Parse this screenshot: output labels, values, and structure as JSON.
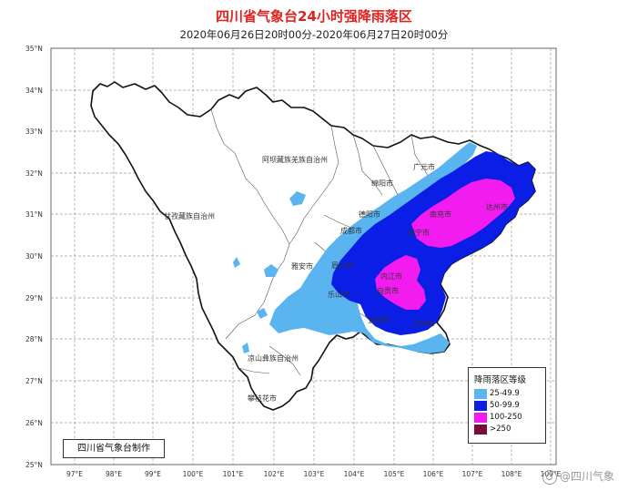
{
  "title": "四川省气象台24小时强降雨落区",
  "subtitle": "2020年06月26日20时00分-2020年06月27日20时00分",
  "lat_labels": [
    "35°N",
    "34°N",
    "33°N",
    "32°N",
    "31°N",
    "30°N",
    "29°N",
    "28°N",
    "27°N",
    "26°N",
    "25°N"
  ],
  "lon_labels": [
    "97°E",
    "98°E",
    "99°E",
    "100°E",
    "101°E",
    "102°E",
    "103°E",
    "104°E",
    "105°E",
    "106°E",
    "107°E",
    "108°E",
    "109°E"
  ],
  "regions": {
    "aba": "阿坝藏族羌族自治州",
    "ganzi": "甘孜藏族自治州",
    "liangshan": "凉山彝族自治州"
  },
  "cities": {
    "guangyuan": "广元市",
    "mianyang": "绵阳市",
    "deyang": "德阳市",
    "chengdu": "成都市",
    "nanchong": "南充市",
    "dazhou": "达州市",
    "suining": "遂宁市",
    "yaan": "雅安市",
    "meishan": "眉山市",
    "leshan": "乐山市",
    "neijiang": "内江市",
    "zigong": "自贡市",
    "yibin": "宜宾市",
    "luzhou": "泸州市",
    "panzhihua": "攀枝花市"
  },
  "legend": {
    "title": "降雨落区等级",
    "items": [
      {
        "label": "25-49.9",
        "color": "#5ab4f0"
      },
      {
        "label": "50-99.9",
        "color": "#0a1ee6"
      },
      {
        "label": "100-250",
        "color": "#f21cf0"
      },
      {
        "label": ">250",
        "color": "#7a0c3c"
      }
    ]
  },
  "producer": "四川省气象台制作",
  "watermark": "@四川气象"
}
